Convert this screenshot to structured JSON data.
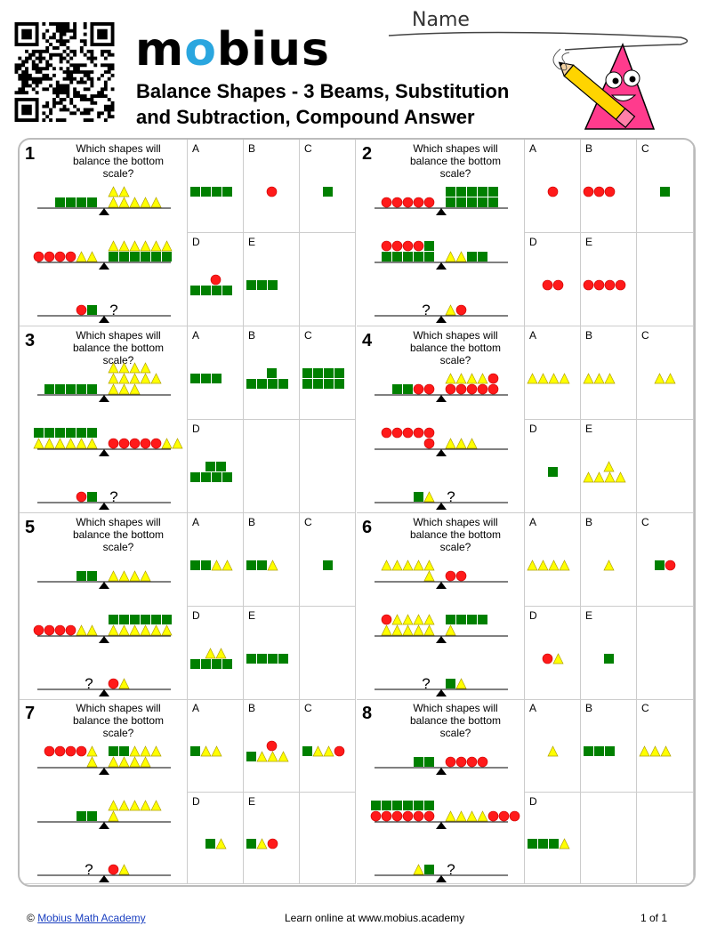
{
  "header": {
    "logo_text": "mobius",
    "title_line1": "Balance Shapes - 3 Beams, Substitution",
    "title_line2": "and Subtraction, Compound Answer",
    "name_label": "Name"
  },
  "colors": {
    "green": "#008000",
    "red": "#ff1a1a",
    "yellow": "#ffff00",
    "accent": "#2aa6df",
    "mascot": "#ff3b8d"
  },
  "question_prompt": "Which shapes will balance the bottom scale?",
  "questions": [
    {
      "number": "1",
      "scales": [
        {
          "left": "gggg",
          "right": "yy/yyyyy"
        },
        {
          "left": "rrrryy",
          "right": "yyyyyy/gggggg"
        },
        {
          "left": "rg",
          "right": "?"
        }
      ],
      "options": [
        {
          "label": "A",
          "shapes": "gggg"
        },
        {
          "label": "B",
          "shapes": "r"
        },
        {
          "label": "C",
          "shapes": "g"
        },
        {
          "label": "D",
          "shapes": "r/gggg"
        },
        {
          "label": "E",
          "shapes": "ggg"
        }
      ]
    },
    {
      "number": "2",
      "scales": [
        {
          "left": "rrrrr",
          "right": "ggggg/ggggg"
        },
        {
          "left": "rrrrg/ggggg",
          "right": "yygg"
        },
        {
          "left": "?",
          "right": "yr"
        }
      ],
      "options": [
        {
          "label": "A",
          "shapes": "r"
        },
        {
          "label": "B",
          "shapes": "rrr"
        },
        {
          "label": "C",
          "shapes": "g"
        },
        {
          "label": "D",
          "shapes": "rr"
        },
        {
          "label": "E",
          "shapes": "rrrr"
        }
      ]
    },
    {
      "number": "3",
      "scales": [
        {
          "left": "ggggg",
          "right": "yyyy/yyyyy/yyy"
        },
        {
          "left": "gggggg/yyyyyy",
          "right": "rrrrryy"
        },
        {
          "left": "rg",
          "right": "?"
        }
      ],
      "options": [
        {
          "label": "A",
          "shapes": "ggg"
        },
        {
          "label": "B",
          "shapes": "g/gggg"
        },
        {
          "label": "C",
          "shapes": "gggg/gggg"
        },
        {
          "label": "D",
          "shapes": "gg/gggg"
        }
      ]
    },
    {
      "number": "4",
      "scales": [
        {
          "left": "ggrr",
          "right": "yyyyr/rrrrr"
        },
        {
          "left": "rrrrr/r",
          "right": "yyy"
        },
        {
          "left": "gy",
          "right": "?"
        }
      ],
      "options": [
        {
          "label": "A",
          "shapes": "yyyy"
        },
        {
          "label": "B",
          "shapes": "yyy"
        },
        {
          "label": "C",
          "shapes": "yy"
        },
        {
          "label": "D",
          "shapes": "g"
        },
        {
          "label": "E",
          "shapes": "y/yyyy"
        }
      ]
    },
    {
      "number": "5",
      "scales": [
        {
          "left": "gg",
          "right": "yyyy"
        },
        {
          "left": "rrrryy",
          "right": "gggggg/yyyyyy"
        },
        {
          "left": "?",
          "right": "ry"
        }
      ],
      "options": [
        {
          "label": "A",
          "shapes": "ggyy"
        },
        {
          "label": "B",
          "shapes": "ggy"
        },
        {
          "label": "C",
          "shapes": "g"
        },
        {
          "label": "D",
          "shapes": "yy/gggg"
        },
        {
          "label": "E",
          "shapes": "gggg"
        }
      ]
    },
    {
      "number": "6",
      "scales": [
        {
          "left": "yyyyy/y",
          "right": "rr"
        },
        {
          "left": "ryyyy/yyyyy",
          "right": "gggg/y"
        },
        {
          "left": "?",
          "right": "gy"
        }
      ],
      "options": [
        {
          "label": "A",
          "shapes": "yyyy"
        },
        {
          "label": "B",
          "shapes": "y"
        },
        {
          "label": "C",
          "shapes": "gr"
        },
        {
          "label": "D",
          "shapes": "ry"
        },
        {
          "label": "E",
          "shapes": "g"
        }
      ]
    },
    {
      "number": "7",
      "scales": [
        {
          "left": "rrrry/y",
          "right": "ggyyy/yyyy"
        },
        {
          "left": "gg",
          "right": "yyyyy/y"
        },
        {
          "left": "?",
          "right": "ry"
        }
      ],
      "options": [
        {
          "label": "A",
          "shapes": "gyy"
        },
        {
          "label": "B",
          "shapes": "r/gyyy"
        },
        {
          "label": "C",
          "shapes": "gyyr"
        },
        {
          "label": "D",
          "shapes": "gy"
        },
        {
          "label": "E",
          "shapes": "gyr"
        }
      ]
    },
    {
      "number": "8",
      "scales": [
        {
          "left": "gg",
          "right": "rrrr"
        },
        {
          "left": "gggggg/rrrrrr",
          "right": "yyyyrrr"
        },
        {
          "left": "yg",
          "right": "?"
        }
      ],
      "options": [
        {
          "label": "A",
          "shapes": "y"
        },
        {
          "label": "B",
          "shapes": "ggg"
        },
        {
          "label": "C",
          "shapes": "yyy"
        },
        {
          "label": "D",
          "shapes": "gggy"
        }
      ]
    }
  ],
  "footer": {
    "copyright": "©",
    "link_text": "Mobius Math Academy",
    "middle": "Learn online at www.mobius.academy",
    "page": "1 of 1"
  }
}
